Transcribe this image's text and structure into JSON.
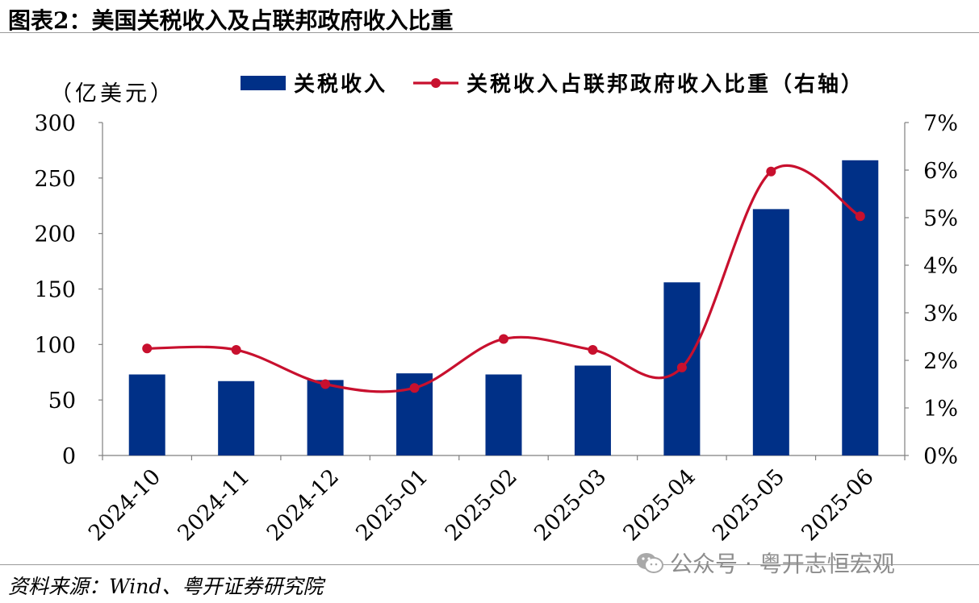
{
  "title": "图表2：美国关税收入及占联邦政府收入比重",
  "source": "资料来源：Wind、粤开证券研究院",
  "watermark": "公众号 · 粤开志恒宏观",
  "watermark_icon": "wechat-icon",
  "colors": {
    "bar": "#003087",
    "line": "#C8102E"
  },
  "chart_data": {
    "type": "bar",
    "categories": [
      "2024-10",
      "2024-11",
      "2024-12",
      "2025-01",
      "2025-02",
      "2025-03",
      "2025-04",
      "2025-05",
      "2025-06"
    ],
    "series": [
      {
        "name": "关税收入",
        "type": "bar",
        "axis": "left",
        "values": [
          73,
          67,
          68,
          74,
          73,
          81,
          156,
          222,
          266
        ]
      },
      {
        "name": "关税收入占联邦政府收入比重（右轴）",
        "type": "line",
        "axis": "right",
        "values": [
          2.25,
          2.22,
          1.5,
          1.42,
          2.45,
          2.22,
          1.85,
          5.97,
          5.03
        ]
      }
    ],
    "ylabel": "（亿美元）",
    "ylim": [
      0,
      300
    ],
    "yticks": [
      "0",
      "50",
      "100",
      "150",
      "200",
      "250",
      "300"
    ],
    "y2lim": [
      0,
      7
    ],
    "y2ticks": [
      "0%",
      "1%",
      "2%",
      "3%",
      "4%",
      "5%",
      "6%",
      "7%"
    ],
    "legend": "top",
    "grid": false
  }
}
